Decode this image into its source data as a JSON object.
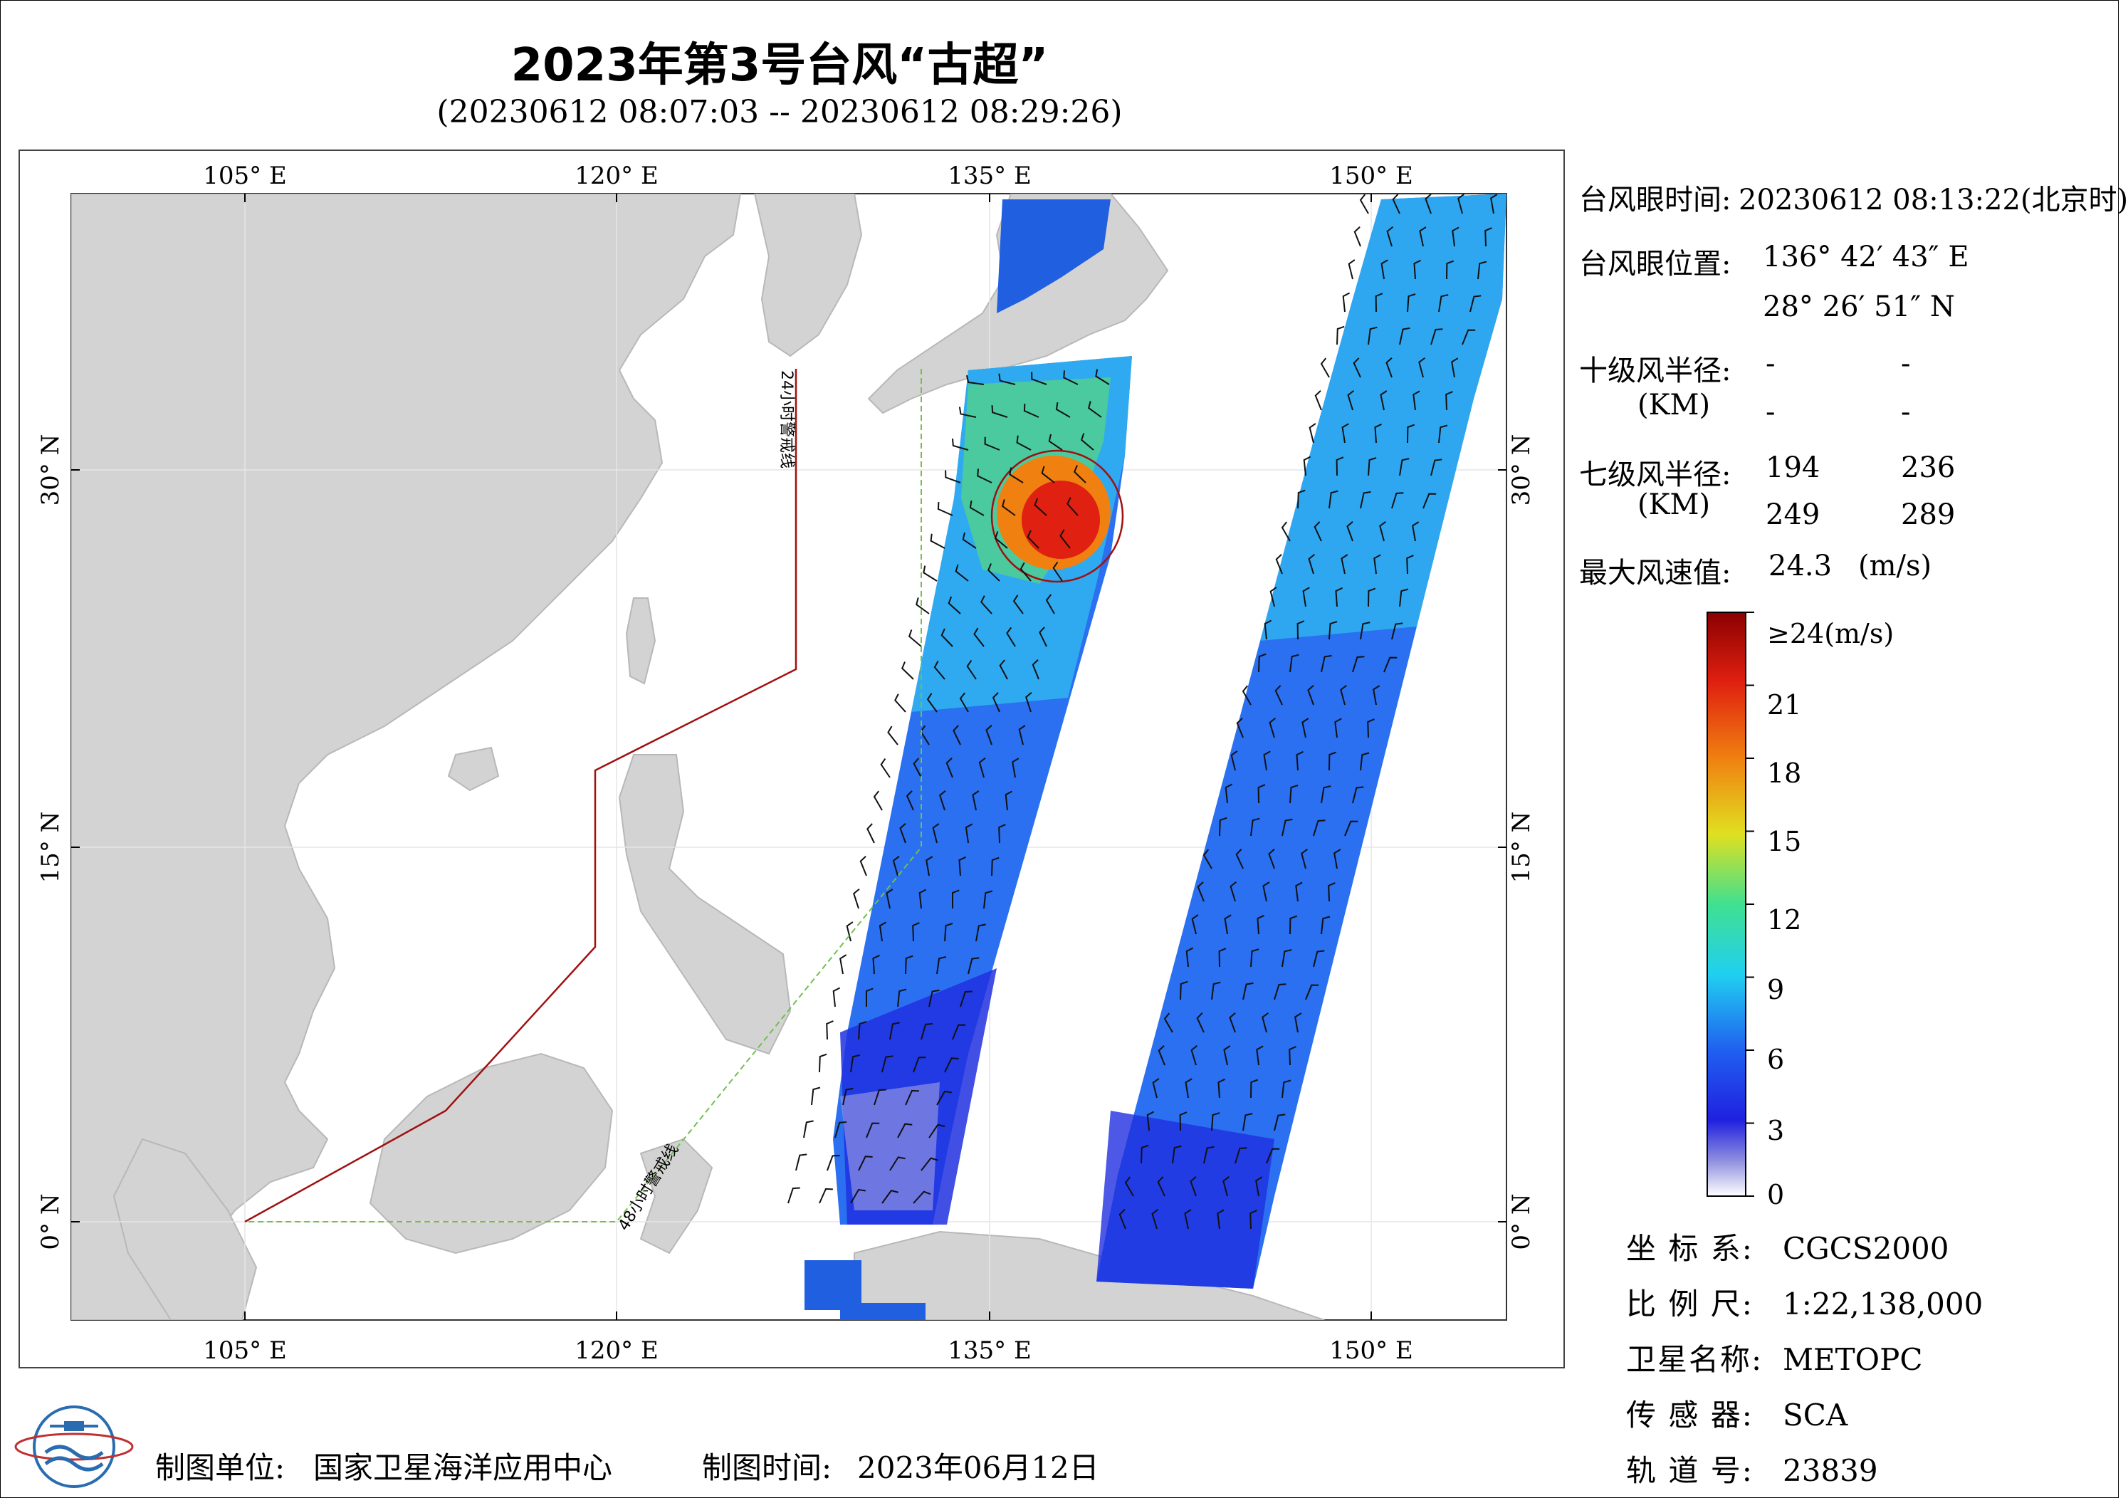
{
  "title": "2023年第3号台风“古超”",
  "subtitle": "(20230612 08:07:03 -- 20230612 08:29:26)",
  "map": {
    "lon_ticks_top": [
      "105° E",
      "120° E",
      "135° E",
      "150° E"
    ],
    "lon_ticks_bottom": [
      "105° E",
      "120° E",
      "135° E",
      "150° E"
    ],
    "lat_ticks_left": [
      "30° N",
      "15° N",
      "0° N"
    ],
    "lat_ticks_right": [
      "30° N",
      "15° N",
      "0° N"
    ],
    "warning_line_24h": "24小时警戒线",
    "warning_line_48h": "48小时警戒线",
    "colors": {
      "land": "#d3d3d3",
      "sea": "#ffffff",
      "line_24h": "#a01010",
      "line_48h": "#70c050"
    }
  },
  "panel": {
    "eye_time_label": "台风眼时间:",
    "eye_time_value": "20230612 08:13:22(北京时)",
    "eye_pos_label": "台风眼位置:",
    "eye_lon": "136° 42′ 43″ E",
    "eye_lat": "28° 26′ 51″ N",
    "r10_label": "十级风半径:",
    "r10_unit": "(KM)",
    "r10_values": [
      "-",
      "-",
      "-",
      "-"
    ],
    "r7_label": "七级风半径:",
    "r7_unit": "(KM)",
    "r7_values": [
      "194",
      "236",
      "249",
      "289"
    ],
    "max_wind_label": "最大风速值:",
    "max_wind_value": "24.3",
    "max_wind_unit": "(m/s)"
  },
  "colorbar": {
    "labels": [
      "≥24(m/s)",
      "21",
      "18",
      "15",
      "12",
      "9",
      "6",
      "3",
      "0"
    ],
    "values": [
      24,
      21,
      18,
      15,
      12,
      9,
      6,
      3,
      0
    ]
  },
  "info": [
    {
      "key": "坐 标 系:",
      "value": "CGCS2000"
    },
    {
      "key": "比 例 尺:",
      "value": "1:22,138,000"
    },
    {
      "key": "卫星名称:",
      "value": "METOPC"
    },
    {
      "key": "传 感 器:",
      "value": "SCA"
    },
    {
      "key": "轨 道 号:",
      "value": "23839"
    }
  ],
  "footer": {
    "unit_label": "制图单位:",
    "unit_value": "国家卫星海洋应用中心",
    "time_label": "制图时间:",
    "time_value": "2023年06月12日"
  }
}
